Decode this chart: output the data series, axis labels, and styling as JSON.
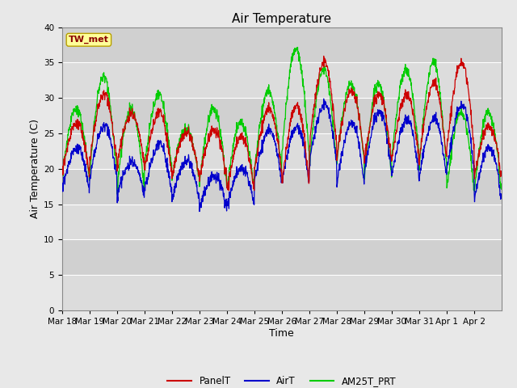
{
  "title": "Air Temperature",
  "xlabel": "Time",
  "ylabel": "Air Temperature (C)",
  "ylim": [
    0,
    40
  ],
  "annotation": "TW_met",
  "annotation_color": "#8B0000",
  "annotation_bg": "#FFFF99",
  "fig_bg": "#E8E8E8",
  "plot_bg": "#DCDCDC",
  "legend_entries": [
    "PanelT",
    "AirT",
    "AM25T_PRT"
  ],
  "line_colors": [
    "#CC0000",
    "#0000CC",
    "#00CC00"
  ],
  "num_days": 16,
  "x_tick_labels": [
    "Mar 18",
    "Mar 19",
    "Mar 20",
    "Mar 21",
    "Mar 22",
    "Mar 23",
    "Mar 24",
    "Mar 25",
    "Mar 26",
    "Mar 27",
    "Mar 28",
    "Mar 29",
    "Mar 30",
    "Mar 31",
    "Apr 1",
    "Apr 2"
  ],
  "title_fontsize": 11,
  "axis_fontsize": 9,
  "tick_fontsize": 7.5,
  "grid_color": "#C8C8C8",
  "grid_linewidth": 0.8,
  "band_colors": [
    "#DCDCDC",
    "#D0D0D0"
  ]
}
